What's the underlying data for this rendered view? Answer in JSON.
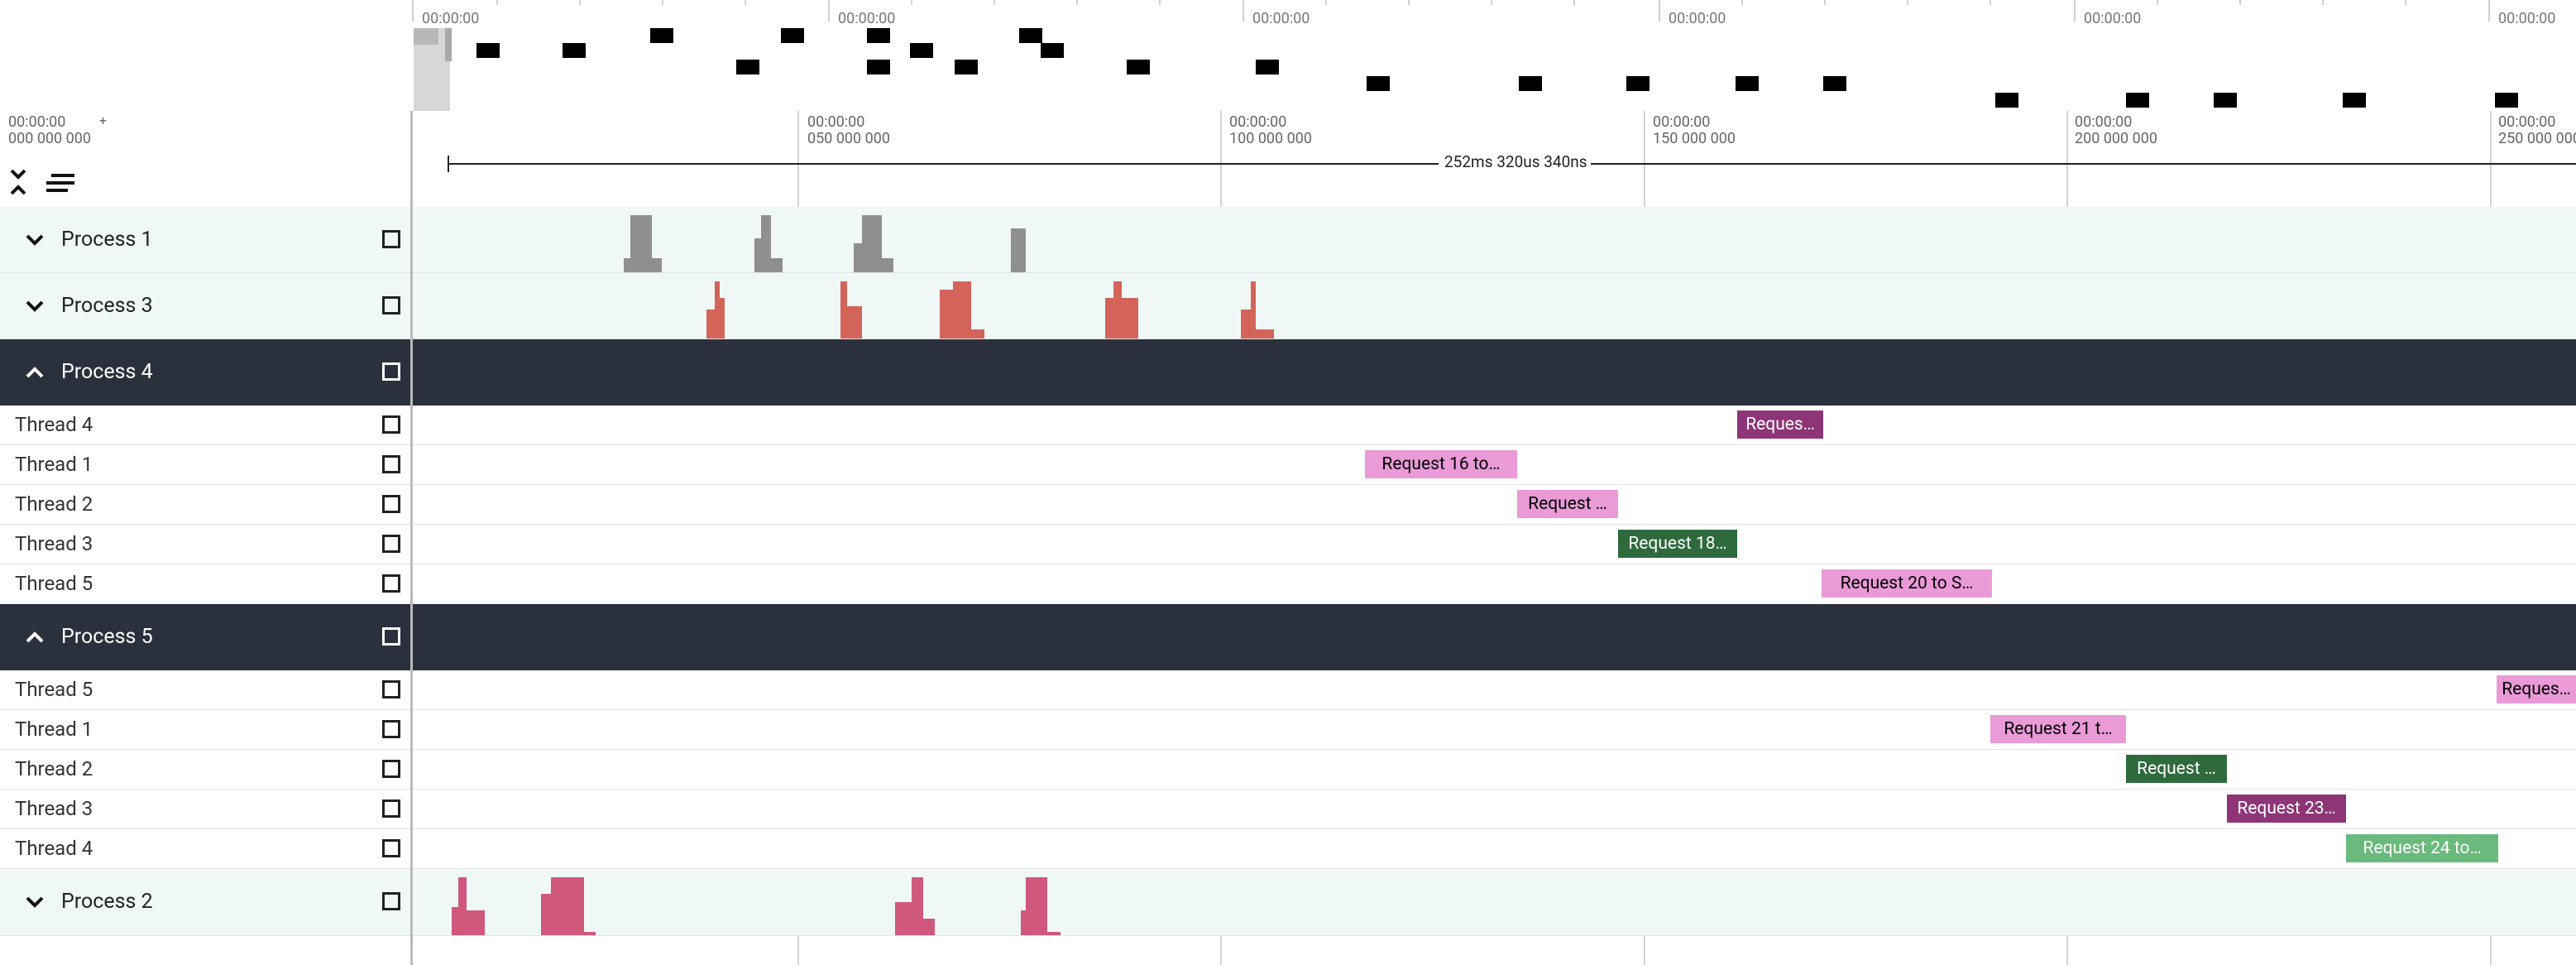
{
  "overview": {
    "tick_labels": [
      "00:00:00",
      "00:00:00",
      "00:00:00",
      "00:00:00",
      "00:00:00",
      "00:00:00"
    ]
  },
  "axis": {
    "origin_label_line1": "00:00:00",
    "origin_label_line2": "000 000 000",
    "plus": "+",
    "ticks": [
      {
        "line1": "00:00:00",
        "line2": "050 000 000"
      },
      {
        "line1": "00:00:00",
        "line2": "100 000 000"
      },
      {
        "line1": "00:00:00",
        "line2": "150 000 000"
      },
      {
        "line1": "00:00:00",
        "line2": "200 000 000"
      },
      {
        "line1": "00:00:00",
        "line2": "250 000 000"
      }
    ],
    "measurement": "252ms 320us 340ns"
  },
  "tracks": {
    "process1": {
      "title": "Process 1"
    },
    "process3": {
      "title": "Process 3"
    },
    "process4": {
      "title": "Process 4",
      "threads": [
        {
          "name": "Thread 4",
          "slice": "Reques…",
          "color": "#8e3577",
          "text_color": "#ffffff"
        },
        {
          "name": "Thread 1",
          "slice": "Request 16 to…",
          "color": "#e99ad7",
          "text_color": "#000000"
        },
        {
          "name": "Thread 2",
          "slice": "Request …",
          "color": "#e99ad7",
          "text_color": "#000000"
        },
        {
          "name": "Thread 3",
          "slice": "Request 18…",
          "color": "#2f6a3d",
          "text_color": "#ffffff"
        },
        {
          "name": "Thread 5",
          "slice": "Request 20 to S…",
          "color": "#e99ad7",
          "text_color": "#000000"
        }
      ]
    },
    "process5": {
      "title": "Process 5",
      "threads": [
        {
          "name": "Thread 5",
          "slice": "Reques…",
          "color": "#e99ad7",
          "text_color": "#000000"
        },
        {
          "name": "Thread 1",
          "slice": "Request 21 t…",
          "color": "#e99ad7",
          "text_color": "#000000"
        },
        {
          "name": "Thread 2",
          "slice": "Request …",
          "color": "#2f6a3d",
          "text_color": "#ffffff"
        },
        {
          "name": "Thread 3",
          "slice": "Request 23…",
          "color": "#8e3577",
          "text_color": "#ffffff"
        },
        {
          "name": "Thread 4",
          "slice": "Request 24 to…",
          "color": "#69ba7c",
          "text_color": "#ffffff"
        }
      ]
    },
    "process2": {
      "title": "Process 2"
    }
  },
  "colors": {
    "process1_bars": "#8f8f8f",
    "process3_bars": "#d4645a",
    "process2_bars": "#d0587d",
    "expanded_header": "#2a303c"
  }
}
